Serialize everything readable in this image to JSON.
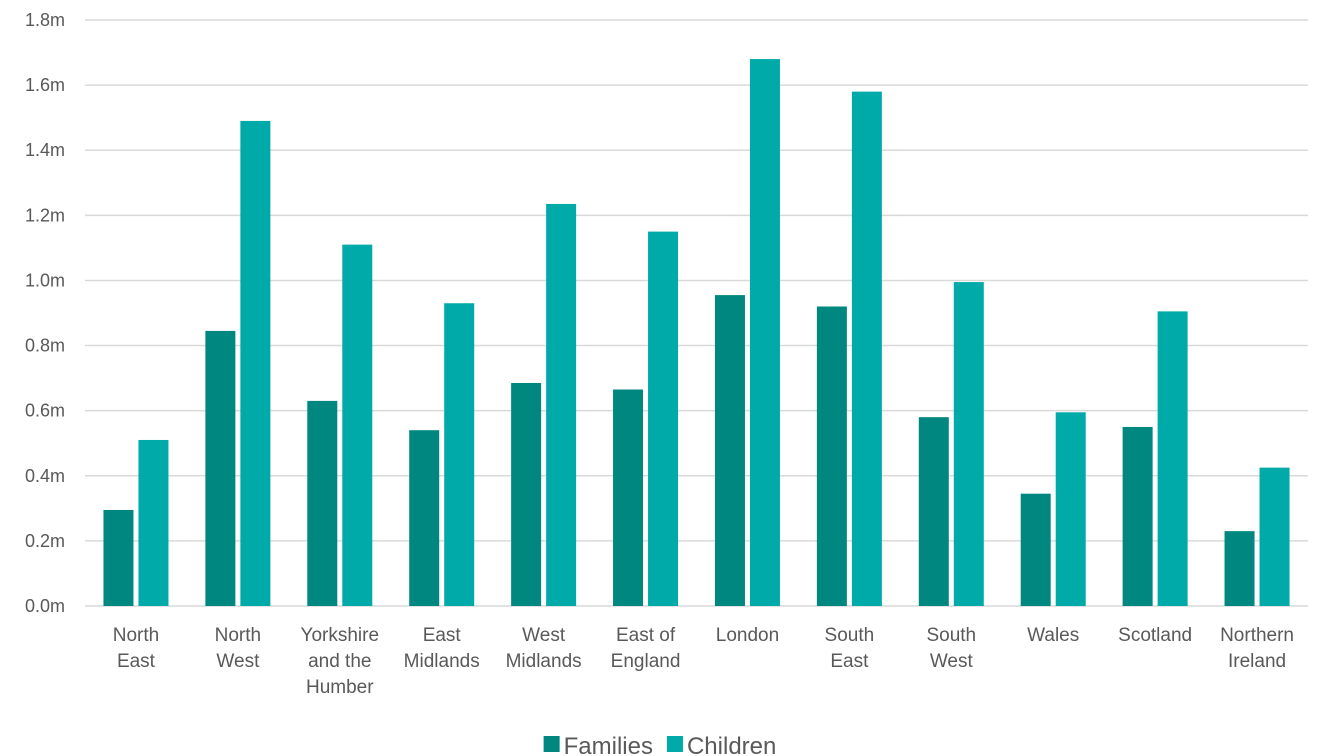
{
  "chart_data": {
    "type": "bar",
    "categories": [
      [
        "North",
        "East"
      ],
      [
        "North",
        "West"
      ],
      [
        "Yorkshire",
        "and the",
        "Humber"
      ],
      [
        "East",
        "Midlands"
      ],
      [
        "West",
        "Midlands"
      ],
      [
        "East of",
        "England"
      ],
      [
        "London"
      ],
      [
        "South",
        "East"
      ],
      [
        "South",
        "West"
      ],
      [
        "Wales"
      ],
      [
        "Scotland"
      ],
      [
        "Northern",
        "Ireland"
      ]
    ],
    "series": [
      {
        "name": "Families",
        "color": "#00877F",
        "values": [
          0.295,
          0.845,
          0.63,
          0.54,
          0.685,
          0.665,
          0.955,
          0.92,
          0.58,
          0.345,
          0.55,
          0.23
        ]
      },
      {
        "name": "Children",
        "color": "#00AAA8",
        "values": [
          0.51,
          1.49,
          1.11,
          0.93,
          1.235,
          1.15,
          1.68,
          1.58,
          0.995,
          0.595,
          0.905,
          0.425
        ]
      }
    ],
    "y_ticks": [
      "0.0m",
      "0.2m",
      "0.4m",
      "0.6m",
      "0.8m",
      "1.0m",
      "1.2m",
      "1.4m",
      "1.6m",
      "1.8m"
    ],
    "ylim": [
      0,
      1.8
    ],
    "y_step": 0.2,
    "y_unit": "millions",
    "grid": true,
    "gridline_color": "#D9D9D9",
    "legend_position": "bottom"
  }
}
